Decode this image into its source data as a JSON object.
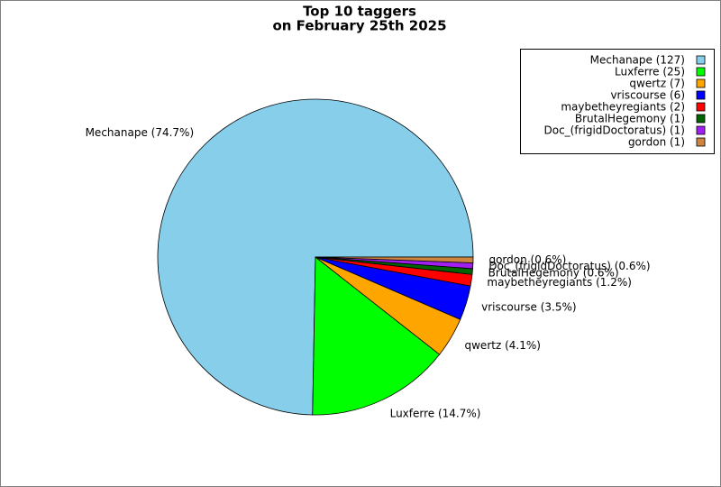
{
  "chart_data": {
    "type": "pie",
    "title": "Top 10 taggers",
    "subtitle": "on February 25th 2025",
    "categories": [
      "Mechanape",
      "Luxferre",
      "qwertz",
      "vriscourse",
      "maybetheyregiants",
      "BrutalHegemony",
      "Doc_(frigidDoctoratus)",
      "gordon"
    ],
    "values": [
      127,
      25,
      7,
      6,
      2,
      1,
      1,
      1
    ],
    "value_labels": [
      "Mechanape (127)",
      "Luxferre (25)",
      "qwertz (7)",
      "vriscourse (6)",
      "maybetheyregiants (2)",
      "BrutalHegemony (1)",
      "Doc_(frigidDoctoratus) (1)",
      "gordon (1)"
    ],
    "slice_labels": [
      "Mechanape (74.7%)",
      "Luxferre (14.7%)",
      "qwertz (4.1%)",
      "vriscourse (3.5%)",
      "maybetheyregiants (1.2%)",
      "BrutalHegemony (0.6%)",
      "Doc_(frigidDoctoratus) (0.6%)",
      "gordon (0.6%)"
    ],
    "colors": [
      "#87ceeb",
      "#00ff00",
      "#ffa500",
      "#0000ff",
      "#ff0000",
      "#006400",
      "#a020f0",
      "#cd853f"
    ],
    "legend": "upper right"
  }
}
